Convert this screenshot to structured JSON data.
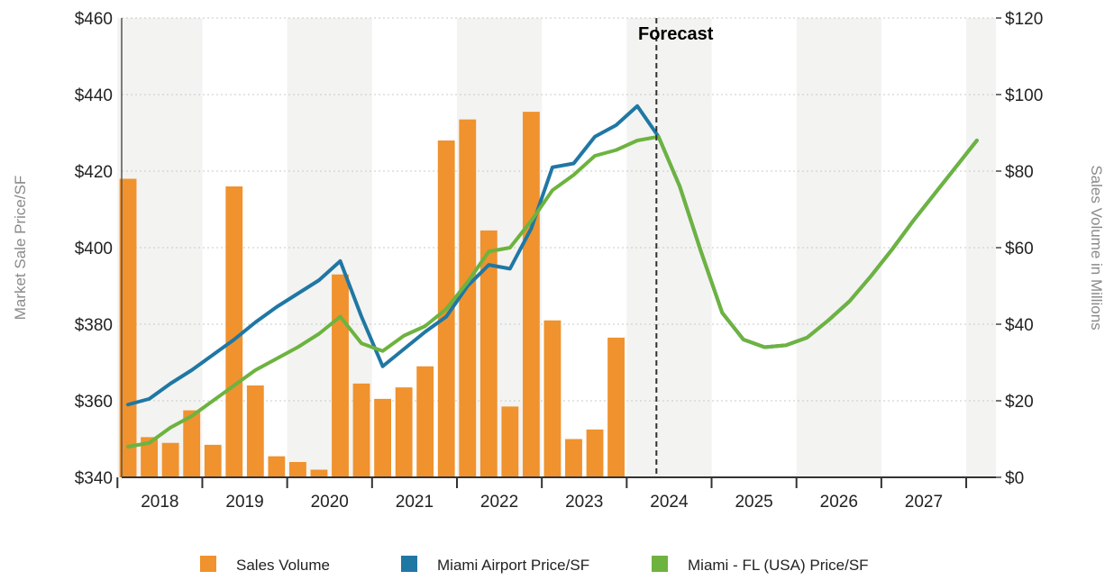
{
  "chart_data": {
    "type": "bar+line",
    "forecast_label": "Forecast",
    "y_left": {
      "label": "Market Sale Price/SF",
      "range": [
        340,
        460
      ],
      "ticks": [
        "$340",
        "$360",
        "$380",
        "$400",
        "$420",
        "$440",
        "$460"
      ],
      "tick_values": [
        340,
        360,
        380,
        400,
        420,
        440,
        460
      ]
    },
    "y_right": {
      "label": "Sales Volume in Millions",
      "range": [
        0,
        120
      ],
      "ticks": [
        "$0",
        "$20",
        "$40",
        "$60",
        "$80",
        "$100",
        "$120"
      ],
      "tick_values": [
        0,
        20,
        40,
        60,
        80,
        100,
        120
      ]
    },
    "x": {
      "range": [
        2017.55,
        2027.85
      ],
      "year_labels": [
        "2018",
        "2019",
        "2020",
        "2021",
        "2022",
        "2023",
        "2024",
        "2025",
        "2026",
        "2027"
      ],
      "forecast_start": 2023.85
    },
    "legend": {
      "position": "bottom",
      "items": [
        {
          "label": "Sales Volume",
          "color": "#f0922e"
        },
        {
          "label": "Miami Airport Price/SF",
          "color": "#1f77a4"
        },
        {
          "label": "Miami - FL (USA)  Price/SF",
          "color": "#6db33f"
        }
      ]
    },
    "colors": {
      "bars": "#f0922e",
      "airport": "#1f77a4",
      "miami": "#6db33f",
      "band": "#f3f3f1"
    },
    "series": [
      {
        "name": "Sales Volume",
        "axis": "right",
        "x": [
          "2017 Q3",
          "2017 Q4",
          "2018 Q1",
          "2018 Q2",
          "2018 Q3",
          "2018 Q4",
          "2019 Q1",
          "2019 Q2",
          "2019 Q3",
          "2019 Q4",
          "2020 Q1",
          "2020 Q2",
          "2020 Q3",
          "2020 Q4",
          "2021 Q1",
          "2021 Q2",
          "2021 Q3",
          "2021 Q4",
          "2022 Q1",
          "2022 Q2",
          "2022 Q3",
          "2022 Q4",
          "2023 Q1",
          "2023 Q2",
          "2023 Q3"
        ],
        "values": [
          78,
          10.5,
          9,
          17.5,
          8.5,
          76,
          24,
          5.5,
          4,
          2,
          53,
          24.5,
          20.5,
          23.5,
          29,
          88,
          93.5,
          64.5,
          18.5,
          95.5,
          41,
          10,
          12.5,
          36.5,
          0
        ]
      },
      {
        "name": "Miami Airport Price/SF",
        "axis": "left",
        "x": [
          2017.625,
          2017.875,
          2018.125,
          2018.375,
          2018.625,
          2018.875,
          2019.125,
          2019.375,
          2019.625,
          2019.875,
          2020.125,
          2020.375,
          2020.625,
          2020.875,
          2021.125,
          2021.375,
          2021.625,
          2021.875,
          2022.125,
          2022.375,
          2022.625,
          2022.875,
          2023.125,
          2023.375,
          2023.625,
          2023.875,
          2024.125,
          2024.375,
          2024.625,
          2024.875,
          2025.125,
          2025.375,
          2025.625,
          2025.875,
          2026.125,
          2026.375,
          2026.625,
          2026.875,
          2027.125,
          2027.375,
          2027.625
        ],
        "values": [
          359,
          360.5,
          364.5,
          368,
          372,
          376,
          380.5,
          384.5,
          388,
          391.5,
          396.5,
          382,
          369,
          373.5,
          378,
          382,
          390,
          395.5,
          394.5,
          405,
          421,
          422,
          429,
          432,
          437,
          429,
          416,
          399,
          383,
          376,
          374,
          374.5,
          376.5,
          381,
          386,
          392.5,
          399.5,
          407,
          414,
          421,
          428
        ]
      },
      {
        "name": "Miami - FL (USA)  Price/SF",
        "axis": "left",
        "x": [
          2017.625,
          2017.875,
          2018.125,
          2018.375,
          2018.625,
          2018.875,
          2019.125,
          2019.375,
          2019.625,
          2019.875,
          2020.125,
          2020.375,
          2020.625,
          2020.875,
          2021.125,
          2021.375,
          2021.625,
          2021.875,
          2022.125,
          2022.375,
          2022.625,
          2022.875,
          2023.125,
          2023.375,
          2023.625,
          2023.875,
          2024.125,
          2024.375,
          2024.625,
          2024.875,
          2025.125,
          2025.375,
          2025.625,
          2025.875,
          2026.125,
          2026.375,
          2026.625,
          2026.875,
          2027.125,
          2027.375,
          2027.625
        ],
        "values": [
          348,
          349,
          353,
          356,
          360,
          364,
          368,
          371,
          374,
          377.5,
          382,
          375,
          373,
          377,
          379.5,
          384,
          391,
          399,
          400,
          407,
          415,
          419,
          424,
          425.5,
          428,
          429,
          416,
          399,
          383,
          376,
          374,
          374.5,
          376.5,
          381,
          386,
          392.5,
          399.5,
          407,
          414,
          421,
          428
        ]
      }
    ]
  }
}
